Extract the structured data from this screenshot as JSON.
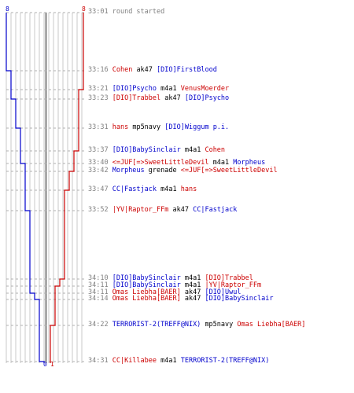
{
  "scores": {
    "blue_start": "8",
    "red_start": "8",
    "blue_end": "0",
    "red_end": "1"
  },
  "colors": {
    "blue_team": "#0000cc",
    "red_team": "#cc0000",
    "grid": "#c8c8c8",
    "midline": "#808080",
    "time": "#808080"
  },
  "events": [
    {
      "time": "33:01",
      "note": "round started"
    },
    {
      "time": "33:16",
      "killer": "Cohen",
      "killer_team": "red",
      "weapon": "ak47",
      "victim": "[DIO]FirstBlood",
      "victim_team": "blue"
    },
    {
      "time": "33:21",
      "killer": "[DIO]Psycho",
      "killer_team": "blue",
      "weapon": "m4a1",
      "victim": "VenusMoerder",
      "victim_team": "red"
    },
    {
      "time": "33:23",
      "killer": "[DIO]Trabbel",
      "killer_team": "red",
      "weapon": "ak47",
      "victim": "[DIO]Psycho",
      "victim_team": "blue"
    },
    {
      "time": "33:31",
      "killer": "hans",
      "killer_team": "red",
      "weapon": "mp5navy",
      "victim": "[DIO]Wiggum p.i.",
      "victim_team": "blue"
    },
    {
      "time": "33:37",
      "killer": "[DIO]BabySinclair",
      "killer_team": "blue",
      "weapon": "m4a1",
      "victim": "Cohen",
      "victim_team": "red"
    },
    {
      "time": "33:40",
      "killer": "<=JUF[=>SweetLittleDevil",
      "killer_team": "red",
      "weapon": "m4a1",
      "victim": "Morpheus",
      "victim_team": "blue"
    },
    {
      "time": "33:42",
      "killer": "Morpheus",
      "killer_team": "blue",
      "weapon": "grenade",
      "victim": "<=JUF[=>SweetLittleDevil",
      "victim_team": "red"
    },
    {
      "time": "33:47",
      "killer": "CC|Fastjack",
      "killer_team": "blue",
      "weapon": "m4a1",
      "victim": "hans",
      "victim_team": "red"
    },
    {
      "time": "33:52",
      "killer": "|YV|Raptor_FFm",
      "killer_team": "red",
      "weapon": "ak47",
      "victim": "CC|Fastjack",
      "victim_team": "blue"
    },
    {
      "time": "34:10",
      "killer": "[DIO]BabySinclair",
      "killer_team": "blue",
      "weapon": "m4a1",
      "victim": "[DIO]Trabbel",
      "victim_team": "red"
    },
    {
      "time": "34:11",
      "killer": "[DIO]BabySinclair",
      "killer_team": "blue",
      "weapon": "m4a1",
      "victim": "|YV|Raptor_FFm",
      "victim_team": "red"
    },
    {
      "time": "34:11",
      "killer": "Omas Liebha[BAER]",
      "killer_team": "red",
      "weapon": "ak47",
      "victim": "[DIO]Uwul",
      "victim_team": "blue"
    },
    {
      "time": "34:14",
      "killer": "Omas Liebha[BAER]",
      "killer_team": "red",
      "weapon": "ak47",
      "victim": "[DIO]BabySinclair",
      "victim_team": "blue"
    },
    {
      "time": "34:22",
      "killer": "TERRORIST-2(TREFF@NIX)",
      "killer_team": "blue",
      "weapon": "mp5navy",
      "victim": "Omas Liebha[BAER]",
      "victim_team": "red"
    },
    {
      "time": "34:31",
      "killer": "CC|Killabee",
      "killer_team": "red",
      "weapon": "m4a1",
      "victim": "TERRORIST-2(TREFF@NIX)",
      "victim_team": "blue"
    }
  ]
}
